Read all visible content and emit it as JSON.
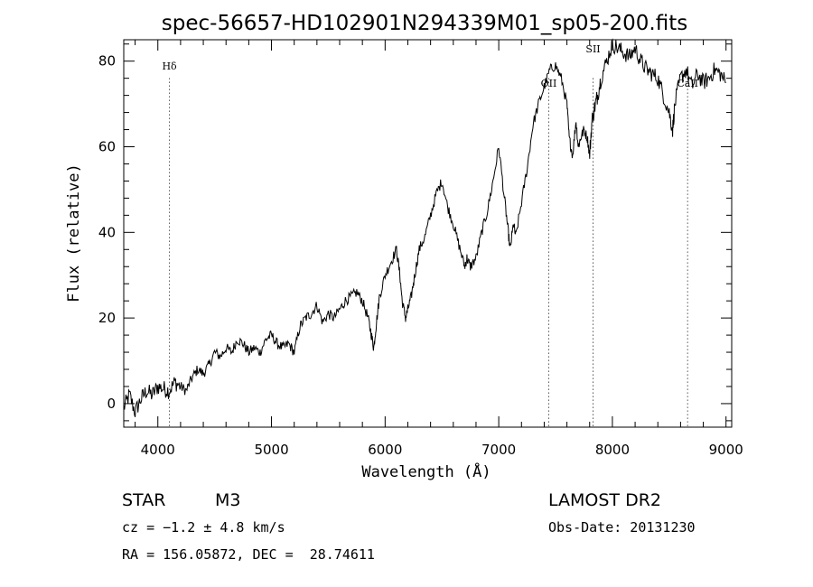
{
  "chart_data": {
    "type": "line",
    "title": "spec-56657-HD102901N294339M01_sp05-200.fits",
    "xlabel": "Wavelength (Å)",
    "ylabel": "Flux (relative)",
    "xlim": [
      3700,
      9050
    ],
    "ylim": [
      -5.5,
      85
    ],
    "xticks": [
      "4000",
      "5000",
      "6000",
      "7000",
      "8000",
      "9000"
    ],
    "xtick_values": [
      4000,
      5000,
      6000,
      7000,
      8000,
      9000
    ],
    "yticks": [
      "0",
      "20",
      "40",
      "60",
      "80"
    ],
    "ytick_values": [
      0,
      20,
      40,
      60,
      80
    ],
    "grid": false,
    "series": [
      {
        "x": [
          3700,
          3750,
          3800,
          3850,
          3900,
          3950,
          4000,
          4050,
          4100,
          4150,
          4200,
          4250,
          4300,
          4350,
          4400,
          4450,
          4500,
          4550,
          4600,
          4650,
          4700,
          4750,
          4800,
          4850,
          4900,
          4950,
          5000,
          5050,
          5100,
          5150,
          5200,
          5250,
          5300,
          5350,
          5400,
          5450,
          5500,
          5550,
          5600,
          5650,
          5700,
          5750,
          5800,
          5850,
          5880,
          5900,
          5920,
          5950,
          6000,
          6050,
          6100,
          6130,
          6150,
          6180,
          6200,
          6230,
          6260,
          6300,
          6350,
          6400,
          6450,
          6500,
          6550,
          6600,
          6650,
          6700,
          6720,
          6750,
          6800,
          6850,
          6900,
          6950,
          7000,
          7050,
          7080,
          7100,
          7130,
          7150,
          7200,
          7250,
          7300,
          7350,
          7400,
          7450,
          7500,
          7550,
          7600,
          7620,
          7650,
          7680,
          7700,
          7720,
          7750,
          7780,
          7800,
          7820,
          7850,
          7870,
          7900,
          7950,
          8000,
          8050,
          8100,
          8150,
          8200,
          8250,
          8300,
          8350,
          8400,
          8450,
          8500,
          8530,
          8550,
          8600,
          8650,
          8700,
          8750,
          8800,
          8850,
          8900,
          8950,
          9000
        ],
        "y": [
          -1,
          2,
          -2,
          1,
          3,
          2,
          4,
          3.5,
          3,
          5,
          4,
          3,
          6,
          8,
          7,
          9,
          12,
          11,
          13,
          12,
          15,
          14,
          12,
          13,
          12,
          15,
          16,
          14,
          13,
          14,
          12,
          18,
          20,
          21,
          23,
          19,
          21,
          20,
          22,
          24,
          25,
          26,
          24,
          20,
          16,
          13,
          18,
          25,
          30,
          33,
          36,
          30,
          24,
          20,
          22,
          25,
          30,
          36,
          39,
          44,
          49,
          52,
          46,
          42,
          37,
          32,
          34,
          32,
          34,
          40,
          45,
          52,
          60,
          48,
          41,
          36,
          42,
          39,
          47,
          55,
          65,
          70,
          74,
          78,
          79,
          76,
          70,
          62,
          58,
          66,
          60,
          62,
          64,
          62,
          58,
          66,
          70,
          72,
          76,
          80,
          84,
          83,
          82,
          81,
          83,
          80,
          78,
          77,
          76,
          72,
          68,
          64,
          70,
          76,
          78,
          74,
          77,
          75,
          76,
          78,
          77,
          75
        ]
      }
    ],
    "annotations": [
      {
        "label": "Hδ",
        "x": 4102
      },
      {
        "label": "OII",
        "x": 7440
      },
      {
        "label": "SII",
        "x": 7830
      },
      {
        "label": "CaII",
        "x": 8662
      }
    ]
  },
  "info": {
    "object_class": "STAR",
    "subclass": "M3",
    "cz": "cz = −1.2 ± 4.8 km/s",
    "coords": "RA = 156.05872, DEC =  28.74611",
    "survey": "LAMOST DR2",
    "obs_date": "Obs-Date: 20131230"
  }
}
